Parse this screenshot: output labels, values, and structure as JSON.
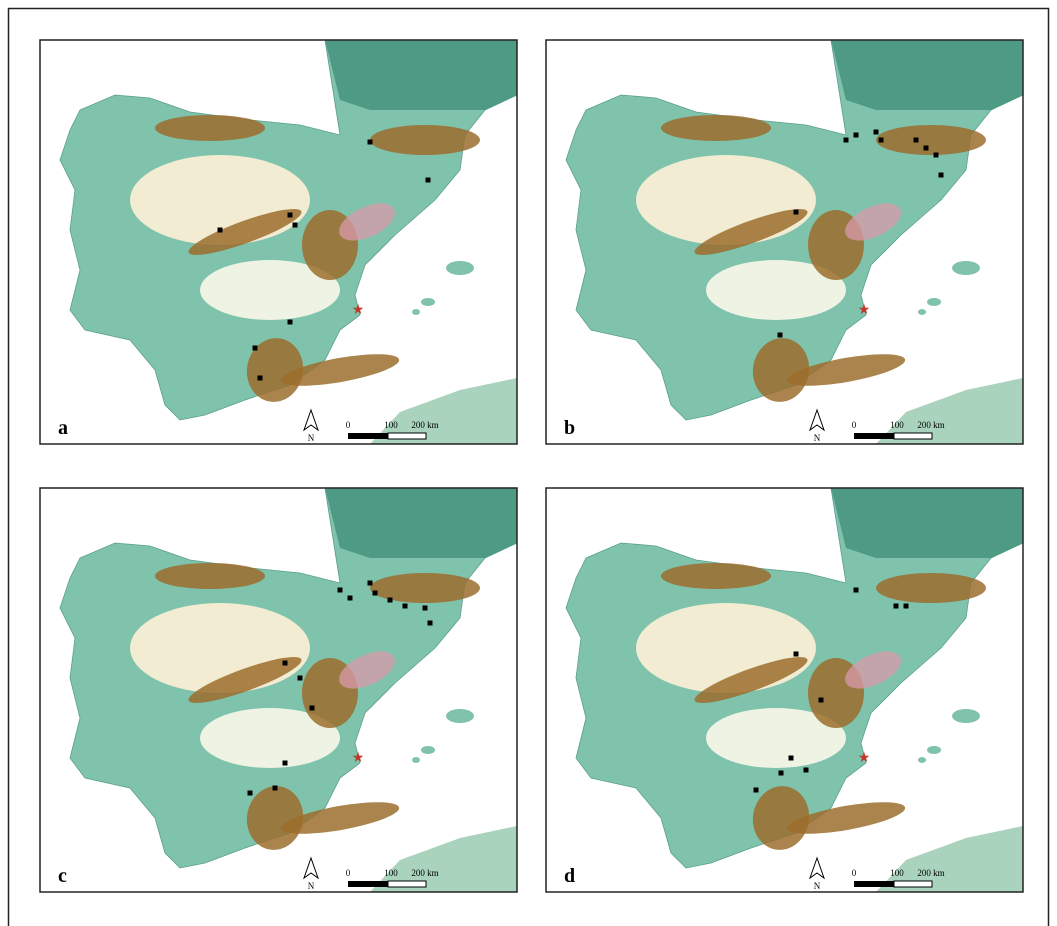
{
  "panels": [
    {
      "label": "a",
      "north": "N",
      "scale_labels": [
        "0",
        "100",
        "200 km"
      ]
    },
    {
      "label": "b",
      "north": "N",
      "scale_labels": [
        "0",
        "100",
        "200 km"
      ]
    },
    {
      "label": "c",
      "north": "N",
      "scale_labels": [
        "0",
        "100",
        "200 km"
      ]
    },
    {
      "label": "d",
      "north": "N",
      "scale_labels": [
        "0",
        "100",
        "200 km"
      ]
    }
  ]
}
